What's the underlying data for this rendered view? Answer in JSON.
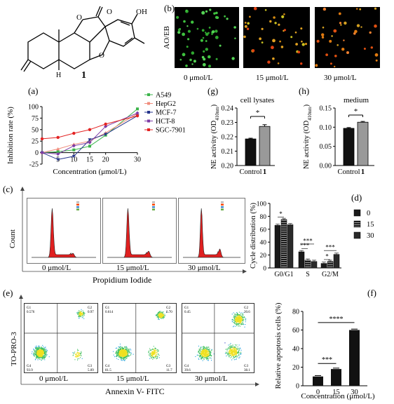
{
  "structure": {
    "panel_label": "",
    "compound_number": "1",
    "atoms": {
      "oh": "OH",
      "o1": "O",
      "o2": "O",
      "o3": "O",
      "h": "H"
    }
  },
  "panel_b": {
    "label": "(b)",
    "stain": "AO/EB",
    "images": [
      "0 μmol/L",
      "15 μmol/L",
      "30 μmol/L"
    ]
  },
  "panel_a": {
    "label": "(a)",
    "chart_data": {
      "type": "line",
      "ylabel": "Inhibition rate (%)",
      "xlabel": "Concentration (μmol/L)",
      "x": [
        0,
        5,
        10,
        15,
        20,
        30
      ],
      "x_ticks": [
        "0",
        "5",
        "10",
        "15",
        "20",
        "30"
      ],
      "y_ticks": [
        "-25",
        "0",
        "25",
        "50",
        "75",
        "100"
      ],
      "ylim": [
        -25,
        100
      ],
      "xlim": [
        0,
        30
      ],
      "series": [
        {
          "name": "A549",
          "color": "#3cb44b",
          "marker": "square",
          "values": [
            0,
            2,
            6,
            14,
            38,
            95
          ]
        },
        {
          "name": "HepG2",
          "color": "#f08c7c",
          "marker": "triangle",
          "values": [
            0,
            8,
            18,
            25,
            43,
            85
          ]
        },
        {
          "name": "MCF-7",
          "color": "#26358c",
          "marker": "triangle-down",
          "values": [
            0,
            -15,
            -8,
            28,
            40,
            80
          ]
        },
        {
          "name": "HCT-8",
          "color": "#7d3ca6",
          "marker": "diamond",
          "values": [
            0,
            -3,
            15,
            22,
            57,
            86
          ]
        },
        {
          "name": "SGC-7901",
          "color": "#e32323",
          "marker": "circle",
          "values": [
            30,
            33,
            42,
            50,
            62,
            80
          ]
        }
      ]
    }
  },
  "panel_g": {
    "label": "(g)",
    "chart_data": {
      "type": "bar",
      "title": "cell lysates",
      "ylabel": "NE activity (OD410nm)",
      "ylabel_main": "NE activity (OD",
      "ylabel_sub": "410nm",
      "ylabel_end": ")",
      "categories": [
        "Control",
        "1"
      ],
      "values": [
        0.2185,
        0.2272
      ],
      "errors": [
        0.0005,
        0.0012
      ],
      "ylim": [
        0.2,
        0.24
      ],
      "y_ticks": [
        "0.20",
        "0.21",
        "0.22",
        "0.23",
        "0.24"
      ],
      "significance": "*"
    }
  },
  "panel_h": {
    "label": "(h)",
    "chart_data": {
      "type": "bar",
      "title": "medium",
      "ylabel": "NE activity (OD410nm)",
      "ylabel_main": "NE activity (OD",
      "ylabel_sub": "410nm",
      "ylabel_end": ")",
      "categories": [
        "Control",
        "1"
      ],
      "values": [
        0.097,
        0.113
      ],
      "errors": [
        0.002,
        0.002
      ],
      "ylim": [
        0.0,
        0.15
      ],
      "y_ticks": [
        "0.00",
        "0.05",
        "0.10",
        "0.15"
      ],
      "significance": "*"
    }
  },
  "panel_c": {
    "label": "(c)",
    "ylabel": "Count",
    "xlabel": "Propidium Iodide",
    "histograms": [
      "0 μmol/L",
      "15 μmol/L",
      "30 μmol/L"
    ]
  },
  "panel_d": {
    "label": "(d)",
    "chart_data": {
      "type": "bar",
      "ylabel": "Cycle distribution (%)",
      "categories": [
        "G0/G1",
        "S",
        "G2/M"
      ],
      "ylim": [
        0,
        100
      ],
      "y_ticks": [
        "0",
        "20",
        "40",
        "60",
        "80",
        "100"
      ],
      "series": [
        {
          "name": "0",
          "color": "#1a1a1a",
          "values": [
            66,
            25,
            7
          ]
        },
        {
          "name": "15",
          "color": "#1a1a1a",
          "pattern": "hatch",
          "values": [
            75,
            12,
            10
          ]
        },
        {
          "name": "30",
          "color": "#1a1a1a",
          "pattern": "hatch-dense",
          "values": [
            67,
            10,
            21
          ]
        }
      ],
      "significance": [
        "*",
        "***",
        "***",
        "*",
        "***"
      ]
    }
  },
  "panel_e": {
    "label": "(e)",
    "ylabel": "TO-PRO-3",
    "xlabel": "Annexin V- FITC",
    "plots": [
      {
        "caption": "0 μmol/L",
        "quadrants": [
          "G1",
          "0.576",
          "G2",
          "0.97",
          "G4",
          "93.9",
          "G3",
          "5.09"
        ]
      },
      {
        "caption": "15 μmol/L",
        "quadrants": [
          "G1",
          "0.614",
          "G2",
          "6.70",
          "G4",
          "81.5",
          "G3",
          "11.7"
        ]
      },
      {
        "caption": "30 μmol/L",
        "quadrants": [
          "G1",
          "0.45",
          "G2",
          "20.6",
          "G4",
          "39.6",
          "G3",
          "38.1"
        ]
      }
    ]
  },
  "panel_f": {
    "label": "(f)",
    "chart_data": {
      "type": "bar",
      "ylabel": "Relative apoptosis cells (%)",
      "xlabel": "Concentration (μmol/L)",
      "categories": [
        "0",
        "15",
        "30"
      ],
      "values": [
        10,
        18,
        60
      ],
      "errors": [
        1,
        1,
        1
      ],
      "ylim": [
        0,
        80
      ],
      "y_ticks": [
        "0",
        "20",
        "40",
        "60",
        "80"
      ],
      "significance": [
        "***",
        "****"
      ]
    }
  }
}
